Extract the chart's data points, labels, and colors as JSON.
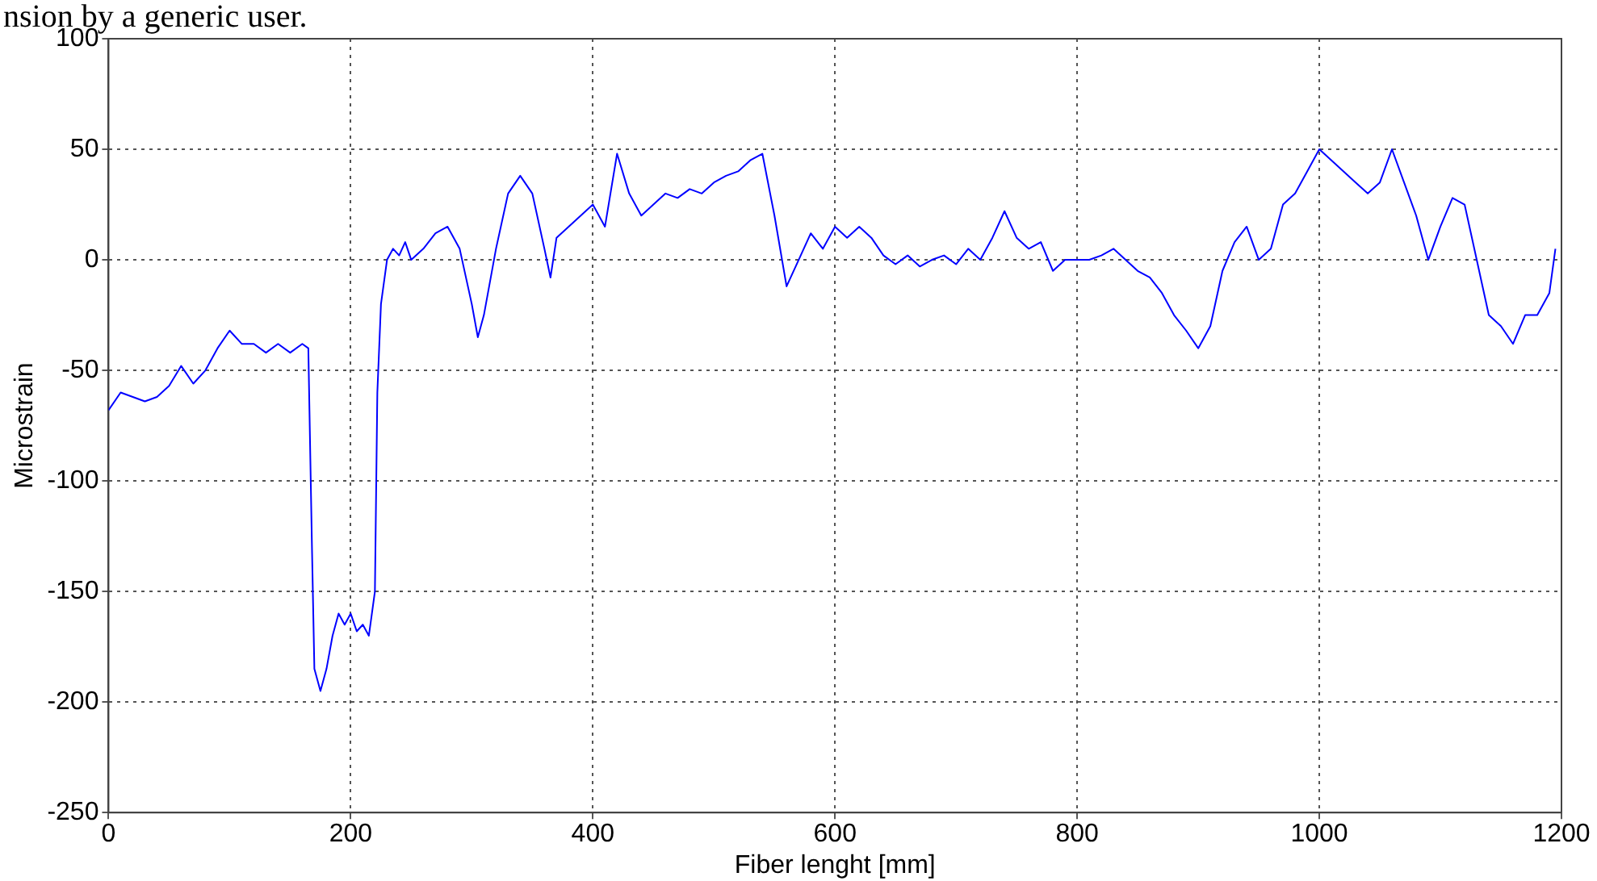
{
  "chart_data": {
    "type": "line",
    "xlabel": "Fiber lenght [mm]",
    "ylabel": "Microstrain",
    "annotations": [
      "nsion by a generic user."
    ],
    "x": [
      0,
      10,
      20,
      30,
      40,
      50,
      60,
      70,
      80,
      90,
      100,
      110,
      120,
      130,
      140,
      150,
      160,
      165,
      168,
      170,
      175,
      180,
      185,
      190,
      195,
      200,
      205,
      210,
      215,
      220,
      222,
      225,
      230,
      235,
      240,
      245,
      250,
      260,
      270,
      280,
      290,
      300,
      305,
      310,
      320,
      330,
      340,
      350,
      360,
      365,
      370,
      380,
      390,
      400,
      410,
      420,
      430,
      440,
      450,
      460,
      470,
      480,
      490,
      500,
      510,
      520,
      530,
      540,
      550,
      560,
      570,
      580,
      590,
      600,
      610,
      620,
      630,
      640,
      650,
      660,
      670,
      680,
      690,
      700,
      710,
      720,
      730,
      740,
      750,
      760,
      770,
      780,
      790,
      800,
      810,
      820,
      830,
      840,
      850,
      860,
      870,
      880,
      890,
      900,
      910,
      920,
      930,
      940,
      950,
      960,
      970,
      980,
      990,
      1000,
      1010,
      1020,
      1030,
      1040,
      1050,
      1060,
      1070,
      1080,
      1090,
      1100,
      1110,
      1120,
      1130,
      1140,
      1150,
      1160,
      1170,
      1180,
      1190,
      1195
    ],
    "series": [
      {
        "color": "#0000ff",
        "values": [
          -68,
          -60,
          -62,
          -64,
          -62,
          -57,
          -48,
          -56,
          -50,
          -40,
          -32,
          -38,
          -38,
          -42,
          -38,
          -42,
          -38,
          -40,
          -130,
          -185,
          -195,
          -185,
          -170,
          -160,
          -165,
          -160,
          -168,
          -165,
          -170,
          -150,
          -60,
          -20,
          0,
          5,
          2,
          8,
          0,
          5,
          12,
          15,
          5,
          -20,
          -35,
          -25,
          5,
          30,
          38,
          30,
          5,
          -8,
          10,
          15,
          20,
          25,
          15,
          48,
          30,
          20,
          25,
          30,
          28,
          32,
          30,
          35,
          38,
          40,
          45,
          48,
          20,
          -12,
          0,
          12,
          5,
          15,
          10,
          15,
          10,
          2,
          -2,
          2,
          -3,
          0,
          2,
          -2,
          5,
          0,
          10,
          22,
          10,
          5,
          8,
          -5,
          0,
          0,
          0,
          2,
          5,
          0,
          -5,
          -8,
          -15,
          -25,
          -32,
          -40,
          -30,
          -5,
          8,
          15,
          0,
          5,
          25,
          30,
          40,
          50,
          45,
          40,
          35,
          30,
          35,
          50,
          35,
          20,
          0,
          15,
          28,
          25,
          0,
          -25,
          -30,
          -38,
          -25,
          -25,
          -15,
          5
        ]
      }
    ],
    "xlim": [
      0,
      1200
    ],
    "xticks": [
      0,
      200,
      400,
      600,
      800,
      1000,
      1200
    ],
    "ylim": [
      -250,
      100
    ],
    "yticks": [
      -250,
      -200,
      -150,
      -100,
      -50,
      0,
      50,
      100
    ],
    "grid": true,
    "legend": false,
    "marker": "none",
    "line_style": "solid"
  }
}
